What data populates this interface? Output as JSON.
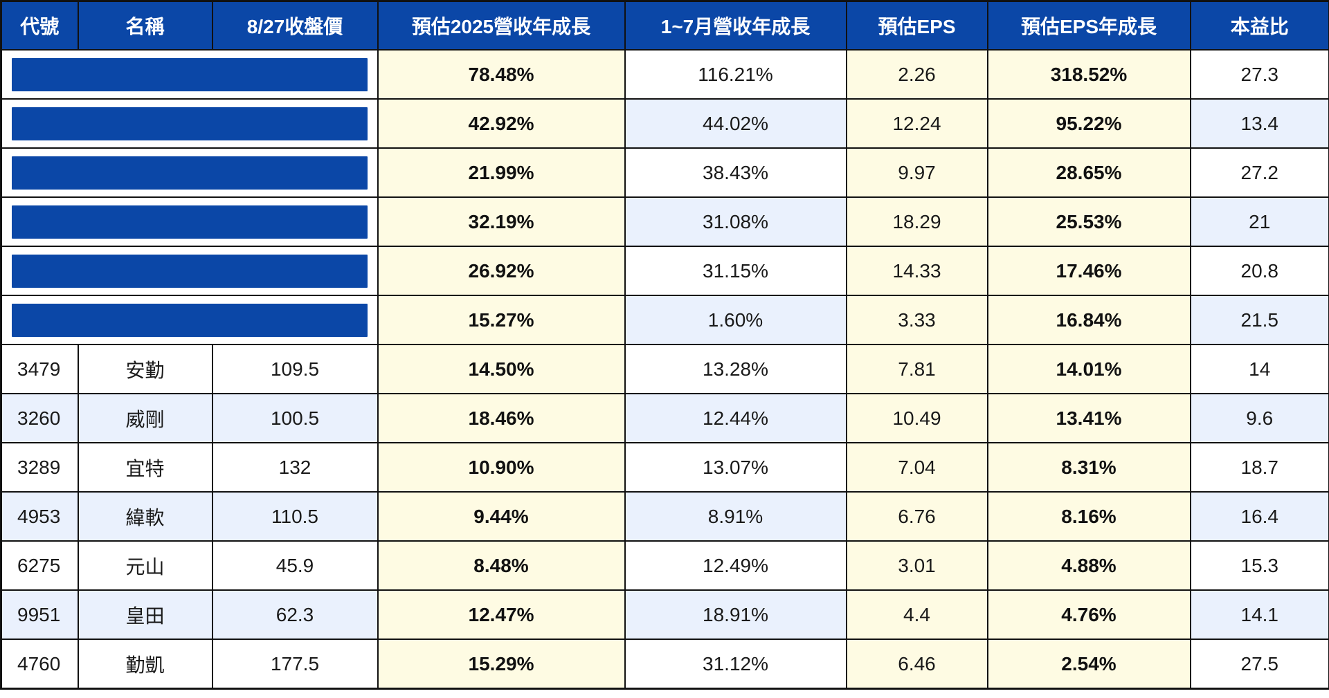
{
  "columns": [
    "代號",
    "名稱",
    "8/27收盤價",
    "預估2025營收年成長",
    "1~7月營收年成長",
    "預估EPS",
    "預估EPS年成長",
    "本益比"
  ],
  "colors": {
    "header_bg": "#0b47a7",
    "header_text": "#ffffff",
    "redaction": "#0b47a7",
    "highlight_bg": "#fefbe3",
    "even_row_bg": "#eaf1fd",
    "odd_row_bg": "#ffffff"
  },
  "rows": [
    {
      "redacted": true,
      "code": "",
      "name": "",
      "close": "",
      "rev_growth_2025e": "78.48%",
      "rev_growth_jan_jul": "116.21%",
      "eps_e": "2.26",
      "eps_growth_e": "318.52%",
      "pe": "27.3"
    },
    {
      "redacted": true,
      "code": "",
      "name": "",
      "close": "",
      "rev_growth_2025e": "42.92%",
      "rev_growth_jan_jul": "44.02%",
      "eps_e": "12.24",
      "eps_growth_e": "95.22%",
      "pe": "13.4"
    },
    {
      "redacted": true,
      "code": "",
      "name": "",
      "close": "",
      "rev_growth_2025e": "21.99%",
      "rev_growth_jan_jul": "38.43%",
      "eps_e": "9.97",
      "eps_growth_e": "28.65%",
      "pe": "27.2"
    },
    {
      "redacted": true,
      "code": "",
      "name": "",
      "close": "",
      "rev_growth_2025e": "32.19%",
      "rev_growth_jan_jul": "31.08%",
      "eps_e": "18.29",
      "eps_growth_e": "25.53%",
      "pe": "21"
    },
    {
      "redacted": true,
      "code": "",
      "name": "",
      "close": "",
      "rev_growth_2025e": "26.92%",
      "rev_growth_jan_jul": "31.15%",
      "eps_e": "14.33",
      "eps_growth_e": "17.46%",
      "pe": "20.8"
    },
    {
      "redacted": true,
      "code": "",
      "name": "",
      "close": "",
      "rev_growth_2025e": "15.27%",
      "rev_growth_jan_jul": "1.60%",
      "eps_e": "3.33",
      "eps_growth_e": "16.84%",
      "pe": "21.5"
    },
    {
      "redacted": false,
      "code": "3479",
      "name": "安勤",
      "close": "109.5",
      "rev_growth_2025e": "14.50%",
      "rev_growth_jan_jul": "13.28%",
      "eps_e": "7.81",
      "eps_growth_e": "14.01%",
      "pe": "14"
    },
    {
      "redacted": false,
      "code": "3260",
      "name": "威剛",
      "close": "100.5",
      "rev_growth_2025e": "18.46%",
      "rev_growth_jan_jul": "12.44%",
      "eps_e": "10.49",
      "eps_growth_e": "13.41%",
      "pe": "9.6"
    },
    {
      "redacted": false,
      "code": "3289",
      "name": "宜特",
      "close": "132",
      "rev_growth_2025e": "10.90%",
      "rev_growth_jan_jul": "13.07%",
      "eps_e": "7.04",
      "eps_growth_e": "8.31%",
      "pe": "18.7"
    },
    {
      "redacted": false,
      "code": "4953",
      "name": "緯軟",
      "close": "110.5",
      "rev_growth_2025e": "9.44%",
      "rev_growth_jan_jul": "8.91%",
      "eps_e": "6.76",
      "eps_growth_e": "8.16%",
      "pe": "16.4"
    },
    {
      "redacted": false,
      "code": "6275",
      "name": "元山",
      "close": "45.9",
      "rev_growth_2025e": "8.48%",
      "rev_growth_jan_jul": "12.49%",
      "eps_e": "3.01",
      "eps_growth_e": "4.88%",
      "pe": "15.3"
    },
    {
      "redacted": false,
      "code": "9951",
      "name": "皇田",
      "close": "62.3",
      "rev_growth_2025e": "12.47%",
      "rev_growth_jan_jul": "18.91%",
      "eps_e": "4.4",
      "eps_growth_e": "4.76%",
      "pe": "14.1"
    },
    {
      "redacted": false,
      "code": "4760",
      "name": "勤凱",
      "close": "177.5",
      "rev_growth_2025e": "15.29%",
      "rev_growth_jan_jul": "31.12%",
      "eps_e": "6.46",
      "eps_growth_e": "2.54%",
      "pe": "27.5"
    }
  ]
}
